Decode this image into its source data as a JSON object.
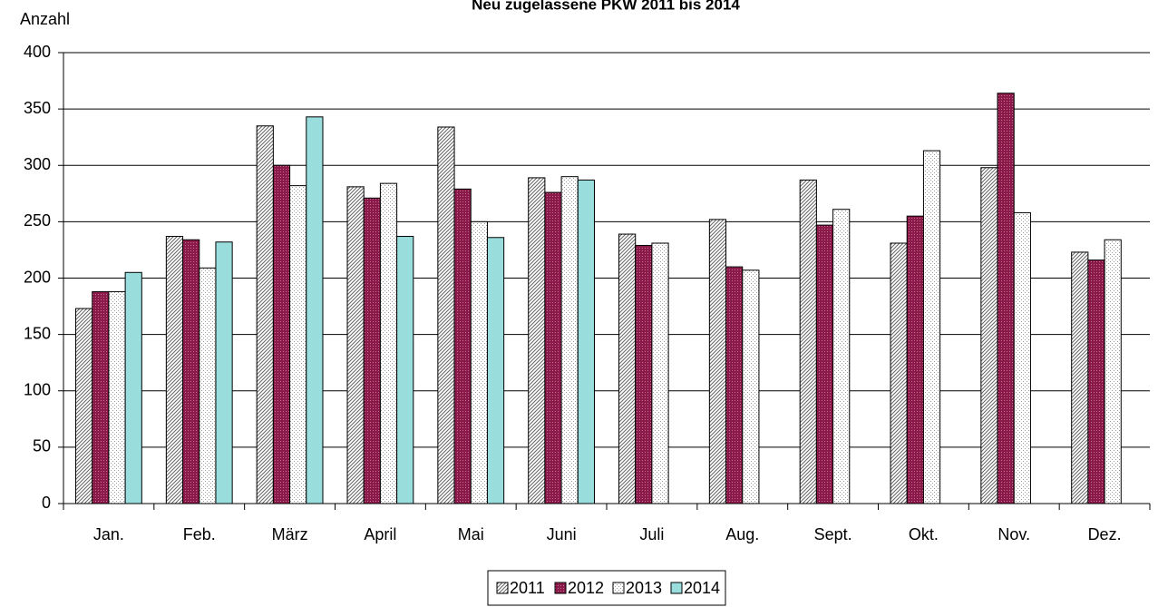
{
  "chart_data": {
    "type": "bar",
    "title": "Neu zugelassene PKW 2011 bis 2014",
    "y_label": "Anzahl",
    "categories": [
      "Jan.",
      "Feb.",
      "März",
      "April",
      "Mai",
      "Juni",
      "Juli",
      "Aug.",
      "Sept.",
      "Okt.",
      "Nov.",
      "Dez."
    ],
    "series": [
      {
        "name": "2011",
        "color": "#d9d9d9",
        "values": [
          173,
          237,
          335,
          281,
          334,
          289,
          239,
          252,
          287,
          231,
          298,
          223
        ]
      },
      {
        "name": "2012",
        "color": "#8b1a4a",
        "values": [
          188,
          234,
          300,
          271,
          279,
          276,
          229,
          210,
          247,
          255,
          364,
          216
        ]
      },
      {
        "name": "2013",
        "color": "#ffffff",
        "values": [
          188,
          209,
          282,
          284,
          250,
          290,
          231,
          207,
          261,
          313,
          258,
          234
        ]
      },
      {
        "name": "2014",
        "color": "#99dddd",
        "values": [
          205,
          232,
          343,
          237,
          236,
          287,
          null,
          null,
          null,
          null,
          null,
          null
        ]
      }
    ],
    "ylim": [
      0,
      400
    ],
    "yticks": [
      0,
      50,
      100,
      150,
      200,
      250,
      300,
      350,
      400
    ],
    "grid": true,
    "legend": "bottom"
  }
}
